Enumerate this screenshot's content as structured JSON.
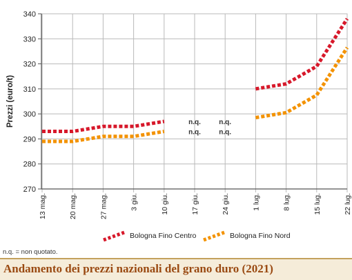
{
  "chart_data": {
    "type": "line",
    "title": "Andamento dei prezzi nazionali del grano duro (2021)",
    "ylabel": "Prezzi (euro/t)",
    "xlabel": "",
    "ylim": [
      270,
      340
    ],
    "yticks": [
      270,
      280,
      290,
      300,
      310,
      320,
      330,
      340
    ],
    "categories": [
      "13 mag.",
      "20 mag.",
      "27 mag.",
      "3 giu.",
      "10 giu.",
      "17 giu.",
      "24 giu.",
      "1 lug.",
      "8 lug.",
      "15 lug.",
      "22 lug."
    ],
    "grid": true,
    "legend_position": "bottom",
    "series": [
      {
        "name": "Bologna Fino Centro",
        "color": "#d7182a",
        "values": [
          293,
          293,
          295,
          295,
          297,
          null,
          null,
          310,
          312,
          319,
          338
        ]
      },
      {
        "name": "Bologna Fino Nord",
        "color": "#f39200",
        "values": [
          289,
          289,
          291,
          291,
          293,
          null,
          null,
          298.5,
          300.5,
          307.5,
          326.5
        ]
      }
    ],
    "annotations": [
      {
        "text": "n.q.",
        "category": "17 giu.",
        "level": 297
      },
      {
        "text": "n.q.",
        "category": "24 giu.",
        "level": 297
      },
      {
        "text": "n.q.",
        "category": "17 giu.",
        "level": 293
      },
      {
        "text": "n.q.",
        "category": "24 giu.",
        "level": 293
      }
    ]
  },
  "footnote": "n.q. = non quotato.",
  "colors": {
    "axis": "#555555",
    "grid": "#b9b9b9",
    "title_bg": "#f5ecd9",
    "title_text": "#9a4a12"
  }
}
